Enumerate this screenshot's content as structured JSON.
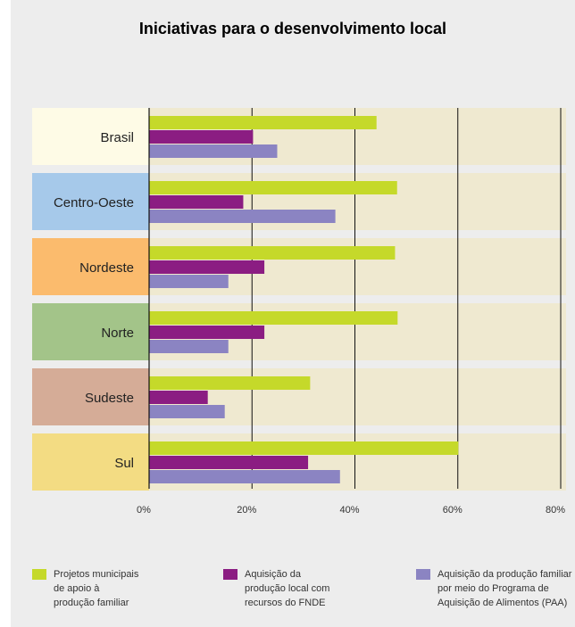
{
  "chart_data": {
    "type": "bar",
    "orientation": "horizontal",
    "title": "Iniciativas para o desenvolvimento local",
    "categories": [
      "Brasil",
      "Centro-Oeste",
      "Nordeste",
      "Norte",
      "Sudeste",
      "Sul"
    ],
    "category_colors": [
      "#fefbe6",
      "#a6c9ea",
      "#fbbb6d",
      "#a3c489",
      "#d5ac97",
      "#f3dc83"
    ],
    "series": [
      {
        "name": "Projetos municipais de apoio à produção familiar",
        "color": "#c5d92a",
        "values": [
          44.2,
          48.2,
          47.8,
          48.3,
          31.3,
          60.1
        ]
      },
      {
        "name": "Aquisição da produção local com recursos do FNDE",
        "color": "#8b1d82",
        "values": [
          20.2,
          18.3,
          22.4,
          22.4,
          11.4,
          30.9
        ]
      },
      {
        "name": "Aquisição da produção familiar por meio do Programa de Aquisição de Alimentos (PAA)",
        "color": "#8b84c2",
        "values": [
          24.9,
          36.2,
          15.4,
          15.4,
          14.7,
          37.1
        ]
      }
    ],
    "xlim": [
      0,
      80
    ],
    "xticks": [
      0,
      20,
      40,
      60,
      80
    ],
    "xtick_labels": [
      "0%",
      "20%",
      "40%",
      "60%",
      "80%"
    ],
    "grid": true,
    "legend_position": "bottom"
  },
  "legend": [
    {
      "color": "#c5d92a",
      "lines": [
        "Projetos municipais",
        "de apoio à",
        "produção familiar"
      ]
    },
    {
      "color": "#8b1d82",
      "lines": [
        "Aquisição da",
        "produção local com",
        "recursos do FNDE"
      ]
    },
    {
      "color": "#8b84c2",
      "lines": [
        "Aquisição da produção familiar",
        "por meio do Programa de",
        "Aquisição de Alimentos (PAA)"
      ]
    }
  ]
}
